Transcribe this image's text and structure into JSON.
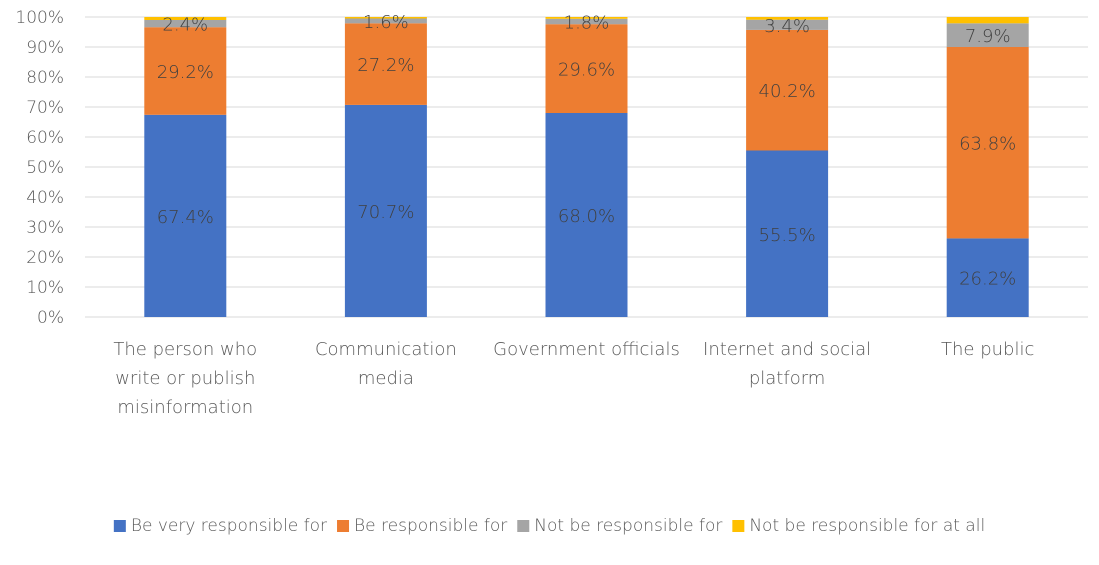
{
  "chart_data": {
    "type": "bar",
    "stacked": true,
    "percent_scale": true,
    "categories": [
      "The person who write or publish misinformation",
      "Communication media",
      "Government officials",
      "Internet and social platform",
      "The public"
    ],
    "category_lines": [
      [
        "The person who",
        "write or publish",
        "misinformation"
      ],
      [
        "Communication",
        "media"
      ],
      [
        "Government officials"
      ],
      [
        "Internet and social",
        "platform"
      ],
      [
        "The public"
      ]
    ],
    "series": [
      {
        "name": "Be very responsible for",
        "color": "#4472C4",
        "values": [
          67.4,
          70.7,
          68.0,
          55.5,
          26.2
        ],
        "labels": [
          "67.4%",
          "70.7%",
          "68.0%",
          "55.5%",
          "26.2%"
        ]
      },
      {
        "name": "Be responsible for",
        "color": "#ED7D31",
        "values": [
          29.2,
          27.2,
          29.6,
          40.2,
          63.8
        ],
        "labels": [
          "29.2%",
          "27.2%",
          "29.6%",
          "40.2%",
          "63.8%"
        ]
      },
      {
        "name": "Not be responsible for",
        "color": "#A5A5A5",
        "values": [
          2.4,
          1.6,
          1.8,
          3.4,
          7.9
        ],
        "labels": [
          "2.4%",
          "1.6%",
          "1.8%",
          "3.4%",
          "7.9%"
        ]
      },
      {
        "name": "Not be responsible for at all",
        "color": "#FFC000",
        "values": [
          1.0,
          0.5,
          0.6,
          0.9,
          2.1
        ],
        "labels": [
          "",
          "",
          "",
          "",
          ""
        ]
      }
    ],
    "ylim": [
      0,
      100
    ],
    "yticks": [
      "0%",
      "10%",
      "20%",
      "30%",
      "40%",
      "50%",
      "60%",
      "70%",
      "80%",
      "90%",
      "100%"
    ],
    "grid": true,
    "legend_position": "bottom",
    "xlabel": "",
    "ylabel": "",
    "title": ""
  }
}
